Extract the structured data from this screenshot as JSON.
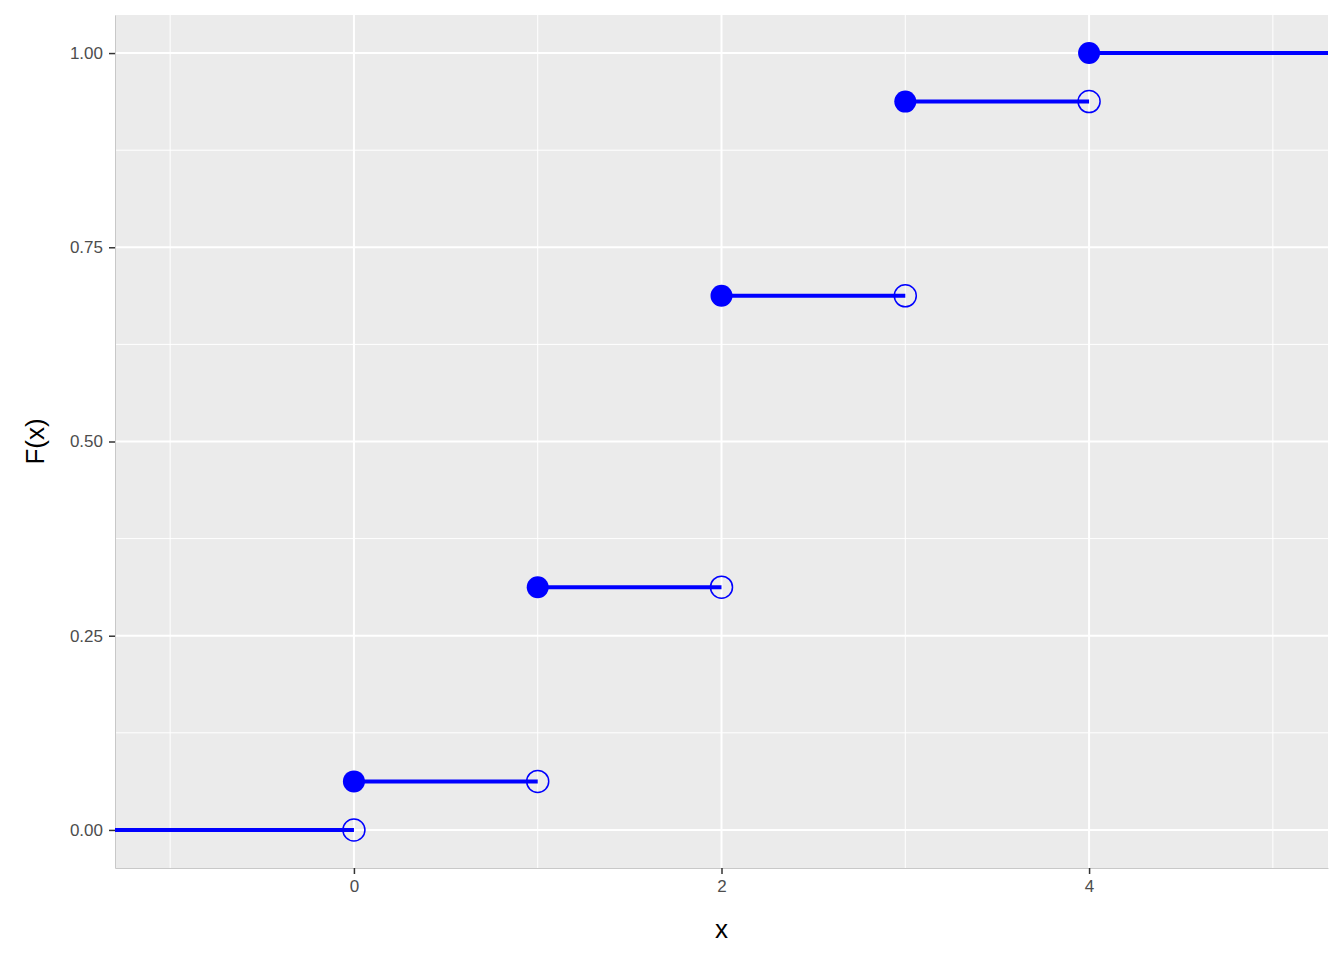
{
  "chart_data": {
    "type": "step",
    "x_label": "x",
    "y_label": "F(x)",
    "x": [
      -1.3,
      0,
      1,
      2,
      3,
      4
    ],
    "values": [
      0,
      0.0625,
      0.3125,
      0.6875,
      0.9375,
      1
    ],
    "color": "#0000ff",
    "xlim": [
      -1.3,
      5.3
    ],
    "ylim": [
      -0.049,
      1.049
    ],
    "xticks": [
      0,
      2,
      4
    ],
    "yticks": [
      {
        "value": 0,
        "label": "0.00"
      },
      {
        "value": 0.25,
        "label": "0.25"
      },
      {
        "value": 0.5,
        "label": "0.50"
      },
      {
        "value": 0.75,
        "label": "0.75"
      },
      {
        "value": 1,
        "label": "1.00"
      }
    ],
    "grid": true
  }
}
